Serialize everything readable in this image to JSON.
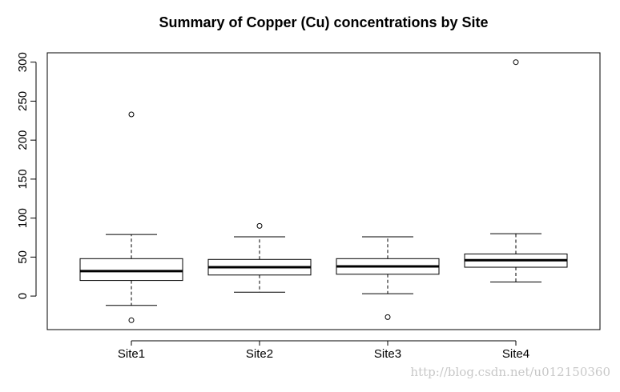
{
  "chart_data": {
    "type": "boxplot",
    "title": "Summary of Copper (Cu) concentrations by Site",
    "xlabel": "",
    "ylabel": "",
    "categories": [
      "Site1",
      "Site2",
      "Site3",
      "Site4"
    ],
    "yticks": [
      0,
      50,
      100,
      150,
      200,
      250,
      300
    ],
    "ylim": [
      -43,
      312
    ],
    "grid": false,
    "legend": "none",
    "boxes": [
      {
        "name": "Site1",
        "whisker_low": -12,
        "q1": 20,
        "median": 32,
        "q3": 48,
        "whisker_high": 79,
        "outliers": [
          233,
          -31
        ]
      },
      {
        "name": "Site2",
        "whisker_low": 5,
        "q1": 27,
        "median": 37,
        "q3": 47,
        "whisker_high": 76,
        "outliers": [
          90
        ]
      },
      {
        "name": "Site3",
        "whisker_low": 3,
        "q1": 28,
        "median": 38,
        "q3": 48,
        "whisker_high": 76,
        "outliers": [
          -27
        ]
      },
      {
        "name": "Site4",
        "whisker_low": 18,
        "q1": 37,
        "median": 46,
        "q3": 54,
        "whisker_high": 80,
        "outliers": [
          300
        ]
      }
    ]
  },
  "watermark": "http://blog.csdn.net/u012150360"
}
